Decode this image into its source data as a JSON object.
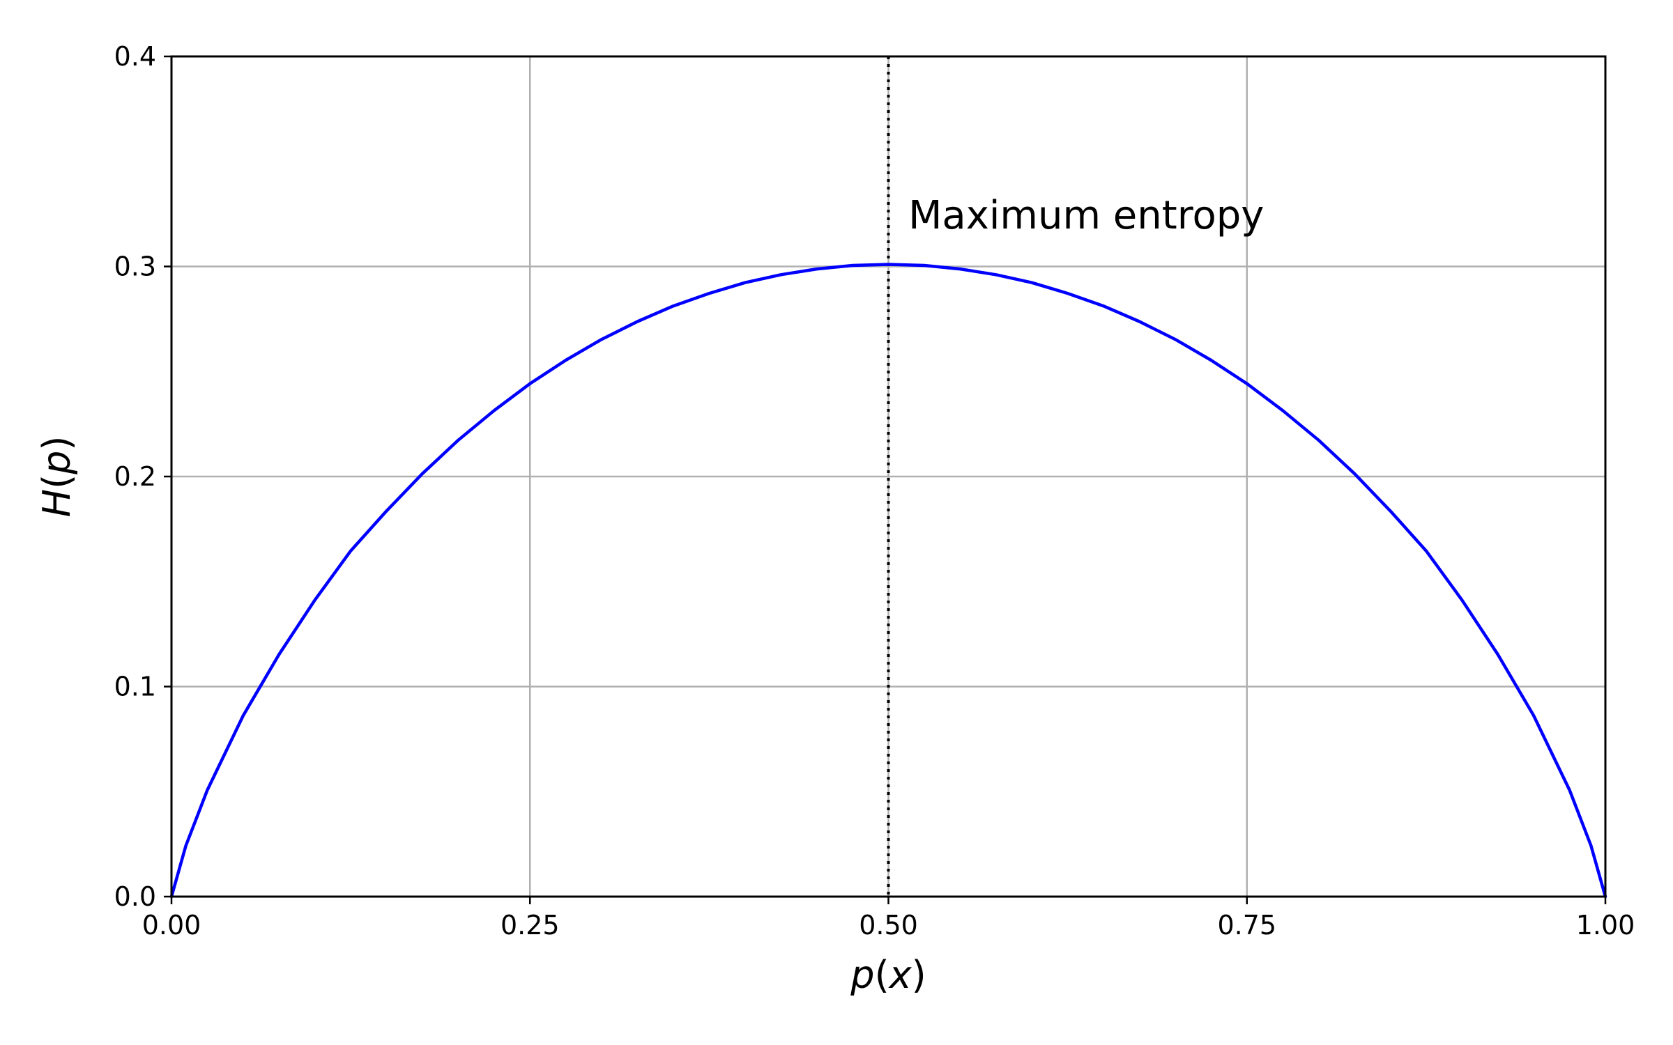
{
  "chart_data": {
    "type": "line",
    "title": "",
    "xlabel": {
      "var": "p",
      "arg": "x"
    },
    "ylabel": {
      "var": "H",
      "arg": "p"
    },
    "xlim": [
      0.0,
      1.0
    ],
    "ylim": [
      0.0,
      0.4
    ],
    "x_ticks": [
      0.0,
      0.25,
      0.5,
      0.75,
      1.0
    ],
    "x_tick_labels": [
      "0.00",
      "0.25",
      "0.50",
      "0.75",
      "1.00"
    ],
    "y_ticks": [
      0.0,
      0.1,
      0.2,
      0.3,
      0.4
    ],
    "y_tick_labels": [
      "0.0",
      "0.1",
      "0.2",
      "0.3",
      "0.4"
    ],
    "grid": true,
    "series": [
      {
        "color": "#0000ff",
        "x": [
          0.0,
          0.01,
          0.025,
          0.05,
          0.075,
          0.1,
          0.125,
          0.15,
          0.175,
          0.2,
          0.225,
          0.25,
          0.275,
          0.3,
          0.325,
          0.35,
          0.375,
          0.4,
          0.425,
          0.45,
          0.475,
          0.5,
          0.525,
          0.55,
          0.575,
          0.6,
          0.625,
          0.65,
          0.675,
          0.7,
          0.725,
          0.75,
          0.775,
          0.8,
          0.825,
          0.85,
          0.875,
          0.9,
          0.925,
          0.95,
          0.975,
          0.99,
          1.0
        ],
        "y": [
          0.0,
          0.0242,
          0.0507,
          0.0862,
          0.1153,
          0.1412,
          0.1646,
          0.1836,
          0.2014,
          0.2173,
          0.2314,
          0.2442,
          0.2554,
          0.2653,
          0.2738,
          0.2812,
          0.2872,
          0.2923,
          0.2961,
          0.2988,
          0.3005,
          0.301,
          0.3005,
          0.2988,
          0.2961,
          0.2923,
          0.2872,
          0.2812,
          0.2738,
          0.2653,
          0.2554,
          0.2442,
          0.2314,
          0.2173,
          0.2014,
          0.1836,
          0.1646,
          0.1412,
          0.1153,
          0.0862,
          0.0507,
          0.0242,
          0.0
        ]
      }
    ],
    "vlines": [
      {
        "x": 0.5,
        "style": "dotted",
        "color": "#000000"
      }
    ],
    "annotations": [
      {
        "text": "Maximum entropy",
        "x": 0.51,
        "y": 0.32
      }
    ]
  }
}
